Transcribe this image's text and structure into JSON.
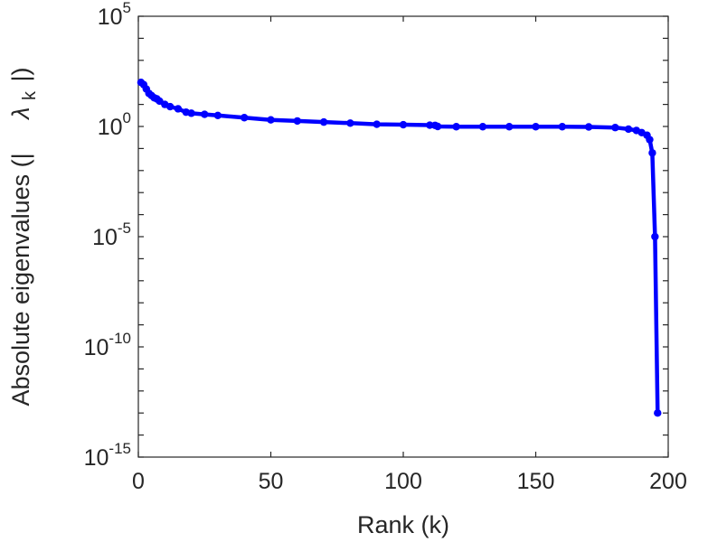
{
  "chart_data": {
    "type": "line",
    "title": "",
    "xlabel": "Rank (k)",
    "ylabel": "Absolute eigenvalues (|λ_k|)",
    "ylabel_parts": {
      "prefix": "Absolute eigenvalues (|",
      "symbol": "λ",
      "subscript": "k",
      "suffix": "|)"
    },
    "xlim": [
      0,
      200
    ],
    "ylim_log10": [
      -15,
      5
    ],
    "y_scale": "log",
    "x_ticks": [
      0,
      50,
      100,
      150,
      200
    ],
    "x_tick_labels": [
      "0",
      "50",
      "100",
      "150",
      "200"
    ],
    "y_ticks_log10": [
      -15,
      -10,
      -5,
      0,
      5
    ],
    "y_tick_labels": [
      {
        "base": "10",
        "exp": "-15"
      },
      {
        "base": "10",
        "exp": "-10"
      },
      {
        "base": "10",
        "exp": "-5"
      },
      {
        "base": "10",
        "exp": "0"
      },
      {
        "base": "10",
        "exp": "5"
      }
    ],
    "grid": false,
    "color": "#0000ff",
    "series": [
      {
        "marker": "dot",
        "x": [
          1,
          2,
          3,
          4,
          5,
          6,
          7,
          8,
          10,
          12,
          15,
          18,
          20,
          25,
          30,
          40,
          50,
          60,
          70,
          80,
          90,
          100,
          110,
          112,
          113,
          120,
          130,
          140,
          150,
          160,
          170,
          180,
          185,
          188,
          190,
          192,
          193,
          194,
          195,
          196
        ],
        "log10_y": [
          2.0,
          1.9,
          1.7,
          1.5,
          1.4,
          1.3,
          1.25,
          1.15,
          1.0,
          0.9,
          0.8,
          0.65,
          0.6,
          0.55,
          0.5,
          0.4,
          0.3,
          0.25,
          0.2,
          0.15,
          0.1,
          0.08,
          0.06,
          0.05,
          0.0,
          -0.01,
          -0.01,
          -0.01,
          -0.01,
          -0.01,
          -0.02,
          -0.05,
          -0.12,
          -0.18,
          -0.28,
          -0.4,
          -0.6,
          -1.2,
          -5.0,
          -13.0
        ]
      }
    ]
  }
}
